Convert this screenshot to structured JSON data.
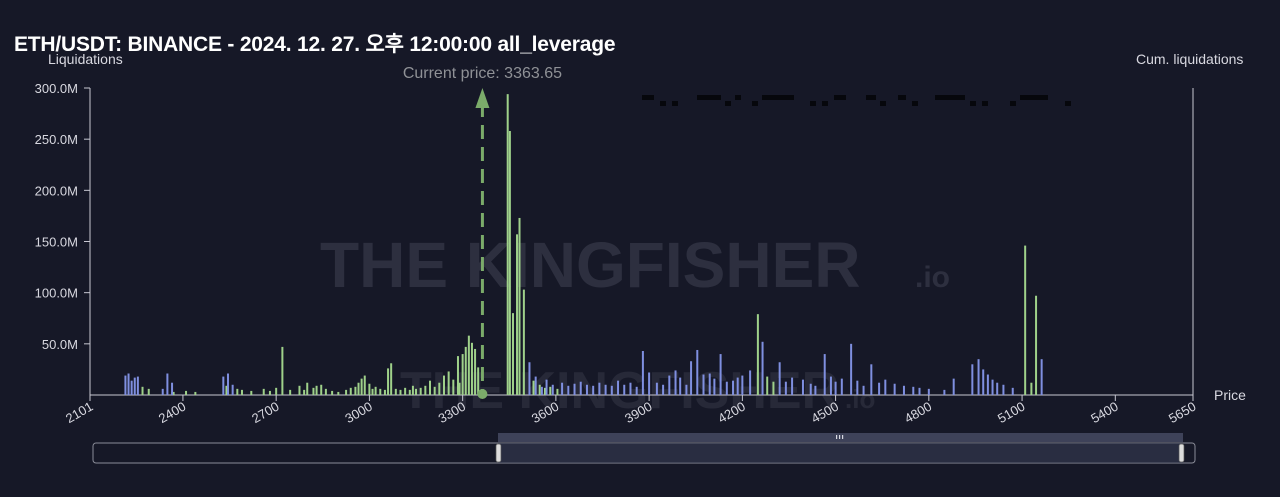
{
  "title": "ETH/USDT: BINANCE - 2024. 12. 27. 오후 12:00:00 all_leverage",
  "watermark": {
    "main": "THE KINGFISHER",
    "suffix": ".io"
  },
  "colors": {
    "background": "#161827",
    "long": "#9fd18a",
    "short": "#7f8fe0",
    "price_line": "#7bab6a",
    "axis": "#c8c8d2"
  },
  "chart_data": {
    "type": "bar",
    "title": "ETH/USDT: BINANCE - 2024. 12. 27. 오후 12:00:00 all_leverage",
    "ylabel": "Liquidations",
    "ylabel_right": "Cum. liquidations",
    "xlabel": "Price",
    "xlim": [
      2101,
      5650
    ],
    "ylim": [
      0,
      300000000
    ],
    "x_ticks": [
      "2101",
      "2400",
      "2700",
      "3000",
      "3300",
      "3600",
      "3900",
      "4200",
      "4500",
      "4800",
      "5100",
      "5400",
      "5650"
    ],
    "y_ticks": [
      "50.0M",
      "100.0M",
      "150.0M",
      "200.0M",
      "250.0M",
      "300.0M"
    ],
    "current_price": {
      "label": "Current price: 3363.65",
      "value": 3363.65
    },
    "series": [
      {
        "side": "long",
        "color": "#9fd18a",
        "points": [
          [
            2270,
            8
          ],
          [
            2290,
            6
          ],
          [
            2370,
            3
          ],
          [
            2410,
            4
          ],
          [
            2440,
            3
          ],
          [
            2540,
            9
          ],
          [
            2575,
            6
          ],
          [
            2590,
            5
          ],
          [
            2620,
            4
          ],
          [
            2660,
            6
          ],
          [
            2680,
            4
          ],
          [
            2700,
            7
          ],
          [
            2720,
            47
          ],
          [
            2745,
            5
          ],
          [
            2775,
            9
          ],
          [
            2790,
            5
          ],
          [
            2800,
            12
          ],
          [
            2820,
            7
          ],
          [
            2830,
            9
          ],
          [
            2845,
            10
          ],
          [
            2860,
            6
          ],
          [
            2880,
            4
          ],
          [
            2900,
            3
          ],
          [
            2925,
            5
          ],
          [
            2940,
            7
          ],
          [
            2955,
            8
          ],
          [
            2965,
            12
          ],
          [
            2975,
            16
          ],
          [
            2985,
            19
          ],
          [
            3000,
            11
          ],
          [
            3010,
            6
          ],
          [
            3020,
            8
          ],
          [
            3035,
            6
          ],
          [
            3050,
            5
          ],
          [
            3060,
            26
          ],
          [
            3070,
            31
          ],
          [
            3085,
            6
          ],
          [
            3100,
            5
          ],
          [
            3115,
            7
          ],
          [
            3130,
            5
          ],
          [
            3140,
            9
          ],
          [
            3150,
            6
          ],
          [
            3165,
            7
          ],
          [
            3180,
            9
          ],
          [
            3195,
            14
          ],
          [
            3210,
            8
          ],
          [
            3225,
            12
          ],
          [
            3240,
            19
          ],
          [
            3255,
            23
          ],
          [
            3270,
            15
          ],
          [
            3285,
            38
          ],
          [
            3290,
            12
          ],
          [
            3300,
            40
          ],
          [
            3310,
            47
          ],
          [
            3320,
            58
          ],
          [
            3330,
            51
          ],
          [
            3340,
            45
          ],
          [
            3350,
            27
          ],
          [
            3445,
            294
          ],
          [
            3452,
            258
          ],
          [
            3462,
            80
          ],
          [
            3475,
            157
          ],
          [
            3483,
            173
          ],
          [
            3497,
            103
          ],
          [
            3528,
            14
          ],
          [
            3548,
            10
          ],
          [
            3565,
            7
          ],
          [
            3582,
            8
          ],
          [
            3605,
            6
          ],
          [
            4250,
            79
          ],
          [
            4280,
            18
          ],
          [
            4300,
            13
          ],
          [
            5110,
            146
          ],
          [
            5130,
            12
          ],
          [
            5145,
            97
          ]
        ]
      },
      {
        "side": "short",
        "color": "#7f8fe0",
        "points": [
          [
            2215,
            19
          ],
          [
            2225,
            21
          ],
          [
            2235,
            14
          ],
          [
            2245,
            17
          ],
          [
            2255,
            18
          ],
          [
            2335,
            6
          ],
          [
            2350,
            21
          ],
          [
            2365,
            12
          ],
          [
            2530,
            18
          ],
          [
            2545,
            21
          ],
          [
            2560,
            10
          ],
          [
            3515,
            32
          ],
          [
            3535,
            18
          ],
          [
            3555,
            8
          ],
          [
            3570,
            15
          ],
          [
            3590,
            10
          ],
          [
            3620,
            12
          ],
          [
            3640,
            9
          ],
          [
            3660,
            11
          ],
          [
            3680,
            13
          ],
          [
            3700,
            10
          ],
          [
            3720,
            9
          ],
          [
            3740,
            12
          ],
          [
            3760,
            10
          ],
          [
            3780,
            9
          ],
          [
            3800,
            14
          ],
          [
            3820,
            10
          ],
          [
            3840,
            12
          ],
          [
            3860,
            8
          ],
          [
            3880,
            43
          ],
          [
            3900,
            22
          ],
          [
            3925,
            12
          ],
          [
            3945,
            10
          ],
          [
            3965,
            19
          ],
          [
            3985,
            24
          ],
          [
            4000,
            17
          ],
          [
            4020,
            10
          ],
          [
            4035,
            33
          ],
          [
            4055,
            44
          ],
          [
            4075,
            20
          ],
          [
            4095,
            21
          ],
          [
            4110,
            16
          ],
          [
            4130,
            40
          ],
          [
            4150,
            13
          ],
          [
            4170,
            14
          ],
          [
            4185,
            17
          ],
          [
            4200,
            19
          ],
          [
            4225,
            24
          ],
          [
            4265,
            52
          ],
          [
            4320,
            32
          ],
          [
            4340,
            13
          ],
          [
            4360,
            17
          ],
          [
            4395,
            15
          ],
          [
            4420,
            11
          ],
          [
            4435,
            9
          ],
          [
            4465,
            40
          ],
          [
            4485,
            18
          ],
          [
            4500,
            13
          ],
          [
            4520,
            16
          ],
          [
            4550,
            50
          ],
          [
            4570,
            14
          ],
          [
            4590,
            9
          ],
          [
            4615,
            30
          ],
          [
            4640,
            12
          ],
          [
            4660,
            15
          ],
          [
            4690,
            11
          ],
          [
            4720,
            9
          ],
          [
            4750,
            8
          ],
          [
            4770,
            7
          ],
          [
            4800,
            6
          ],
          [
            4850,
            5
          ],
          [
            4880,
            16
          ],
          [
            4940,
            30
          ],
          [
            4960,
            35
          ],
          [
            4975,
            25
          ],
          [
            4990,
            20
          ],
          [
            5005,
            15
          ],
          [
            5020,
            12
          ],
          [
            5040,
            10
          ],
          [
            5070,
            7
          ],
          [
            5163,
            35
          ]
        ]
      }
    ]
  }
}
